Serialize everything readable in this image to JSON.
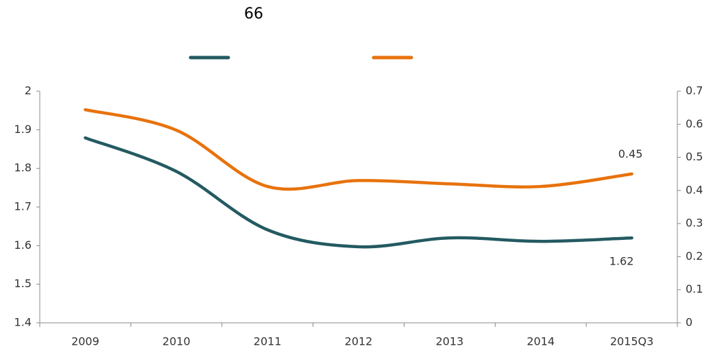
{
  "chart_data": {
    "type": "line",
    "title": "66",
    "categories": [
      "2009",
      "2010",
      "2011",
      "2012",
      "2013",
      "2014",
      "2015Q3"
    ],
    "series": [
      {
        "color": "#245a62",
        "values": [
          1.879,
          1.792,
          1.641,
          1.597,
          1.62,
          1.611,
          1.62
        ],
        "value_labels": [
          null,
          null,
          null,
          null,
          null,
          null,
          "1.62"
        ]
      },
      {
        "color": "#e8720c",
        "axis": "y2",
        "values": [
          0.644,
          0.582,
          0.412,
          0.43,
          0.42,
          0.412,
          0.45
        ],
        "value_labels": [
          null,
          null,
          null,
          null,
          null,
          null,
          "0.45"
        ]
      }
    ],
    "ylim": [
      1.4,
      2
    ],
    "yticks": [
      1.4,
      1.5,
      1.6,
      1.7,
      1.8,
      1.9,
      2
    ],
    "y2lim": [
      0,
      0.7
    ],
    "y2ticks": [
      0,
      0.1,
      0.2,
      0.3,
      0.4,
      0.5,
      0.6,
      0.7
    ]
  }
}
